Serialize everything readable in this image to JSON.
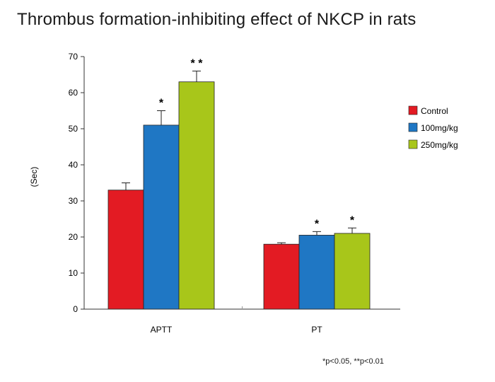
{
  "chart_data": {
    "type": "bar",
    "title": "Thrombus formation-inhibiting effect of NKCP in rats",
    "xlabel": "",
    "ylabel": "(Sec)",
    "ylim": [
      0,
      70
    ],
    "yticks": [
      0,
      10,
      20,
      30,
      40,
      50,
      60,
      70
    ],
    "categories": [
      "APTT",
      "PT"
    ],
    "series": [
      {
        "name": "Control",
        "color": "#e31b23",
        "values": [
          33,
          18
        ],
        "errors": [
          2,
          0.4
        ],
        "significance": [
          "",
          ""
        ]
      },
      {
        "name": "100mg/kg",
        "color": "#1f77c4",
        "values": [
          51,
          20.5
        ],
        "errors": [
          4,
          1
        ],
        "significance": [
          "*",
          "*"
        ]
      },
      {
        "name": "250mg/kg",
        "color": "#a8c61a",
        "values": [
          63,
          21
        ],
        "errors": [
          3,
          1.5
        ],
        "significance": [
          "* *",
          "*"
        ]
      }
    ],
    "legend_position": "right",
    "footnote": "*p<0.05, **p<0.01"
  }
}
